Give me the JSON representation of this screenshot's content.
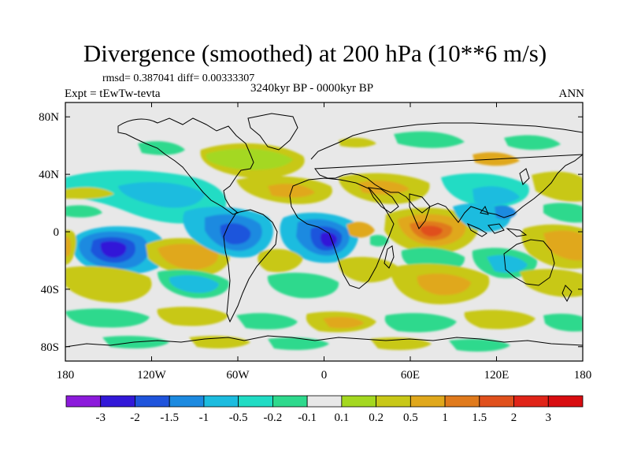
{
  "chart_data": {
    "type": "heatmap",
    "title": "Divergence (smoothed) at 200 hPa (10**6 m/s)",
    "stats_text": "rmsd= 0.387041 diff= 0.00333307",
    "left_title": "Expt = tEwTw-tevta",
    "center_title": "3240kyr BP - 0000kyr BP",
    "right_title": "ANN",
    "xlabel": "",
    "ylabel": "",
    "xlim": [
      -180,
      180
    ],
    "ylim": [
      -90,
      90
    ],
    "x_ticks": [
      {
        "value": -180,
        "label": "180"
      },
      {
        "value": -120,
        "label": "120W"
      },
      {
        "value": -60,
        "label": "60W"
      },
      {
        "value": 0,
        "label": "0"
      },
      {
        "value": 60,
        "label": "60E"
      },
      {
        "value": 120,
        "label": "120E"
      },
      {
        "value": 180,
        "label": "180"
      }
    ],
    "y_ticks": [
      {
        "value": 80,
        "label": "80N"
      },
      {
        "value": 40,
        "label": "40N"
      },
      {
        "value": 0,
        "label": "0"
      },
      {
        "value": -40,
        "label": "40S"
      },
      {
        "value": -80,
        "label": "80S"
      }
    ],
    "colorbar": {
      "levels": [
        "-3",
        "-2",
        "-1.5",
        "-1",
        "-0.5",
        "-0.2",
        "-0.1",
        "0.1",
        "0.2",
        "0.5",
        "1",
        "1.5",
        "2",
        "3"
      ],
      "colors": [
        "#8c1adb",
        "#3218d8",
        "#1f54dc",
        "#1c8ae0",
        "#1cbcdf",
        "#20dcc4",
        "#2ed98d",
        "#e8e8e8",
        "#a4d820",
        "#c8c818",
        "#e0a81c",
        "#e07a1c",
        "#e0501c",
        "#e02418",
        "#d80c10"
      ]
    },
    "features": [
      {
        "name": "central-pacific-convergence-low",
        "lon": -146,
        "lat": -10,
        "value": -2.5
      },
      {
        "name": "amazon-convergence-low",
        "lon": -55,
        "lat": -2,
        "value": -2
      },
      {
        "name": "atlantic-africa-convergence-low",
        "lon": 8,
        "lat": -5,
        "value": -2.2
      },
      {
        "name": "indian-ocean-divergence-high",
        "lon": 73,
        "lat": 0,
        "value": 1.8
      },
      {
        "name": "north-pacific-convergence",
        "lon": -100,
        "lat": 18,
        "value": -0.6
      },
      {
        "name": "arabian-north-africa-divergence",
        "lon": 30,
        "lat": 18,
        "value": 0.5
      },
      {
        "name": "south-pacific-divergence",
        "lon": -110,
        "lat": -15,
        "value": 0.7
      },
      {
        "name": "maritime-continent-convergence",
        "lon": 115,
        "lat": 10,
        "value": -0.6
      },
      {
        "name": "south-indian-divergence",
        "lon": 85,
        "lat": -27,
        "value": 0.5
      },
      {
        "name": "southern-ocean-divergence",
        "lon": 25,
        "lat": -62,
        "value": 0.5
      }
    ]
  }
}
